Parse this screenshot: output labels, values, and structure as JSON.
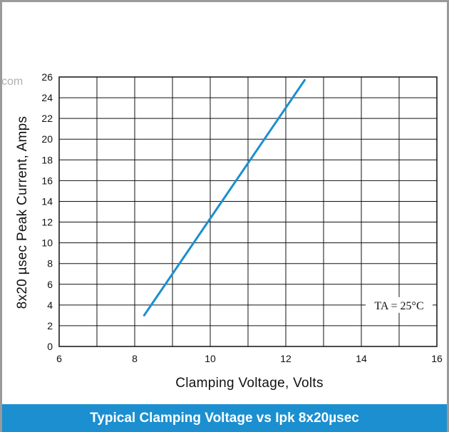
{
  "watermark": "com",
  "caption": "Typical Clamping Voltage vs Ipk 8x20µsec",
  "chart_data": {
    "type": "line",
    "xlabel": "Clamping Voltage, Volts",
    "ylabel": "8x20 µsec Peak Current, Amps",
    "xlim": [
      6,
      16
    ],
    "ylim": [
      0,
      26
    ],
    "x_ticks": [
      6,
      8,
      10,
      12,
      14,
      16
    ],
    "x_grid": [
      6,
      7,
      8,
      9,
      10,
      11,
      12,
      13,
      14,
      15,
      16
    ],
    "y_ticks": [
      0,
      2,
      4,
      6,
      8,
      10,
      12,
      14,
      16,
      18,
      20,
      22,
      24,
      26
    ],
    "grid": true,
    "line_color": "#1b8fd0",
    "series": [
      {
        "x": [
          8.25,
          12.5
        ],
        "y": [
          3.0,
          25.7
        ]
      }
    ],
    "annotation": {
      "text": "TA = 25°C",
      "x": 15,
      "y": 4
    }
  }
}
